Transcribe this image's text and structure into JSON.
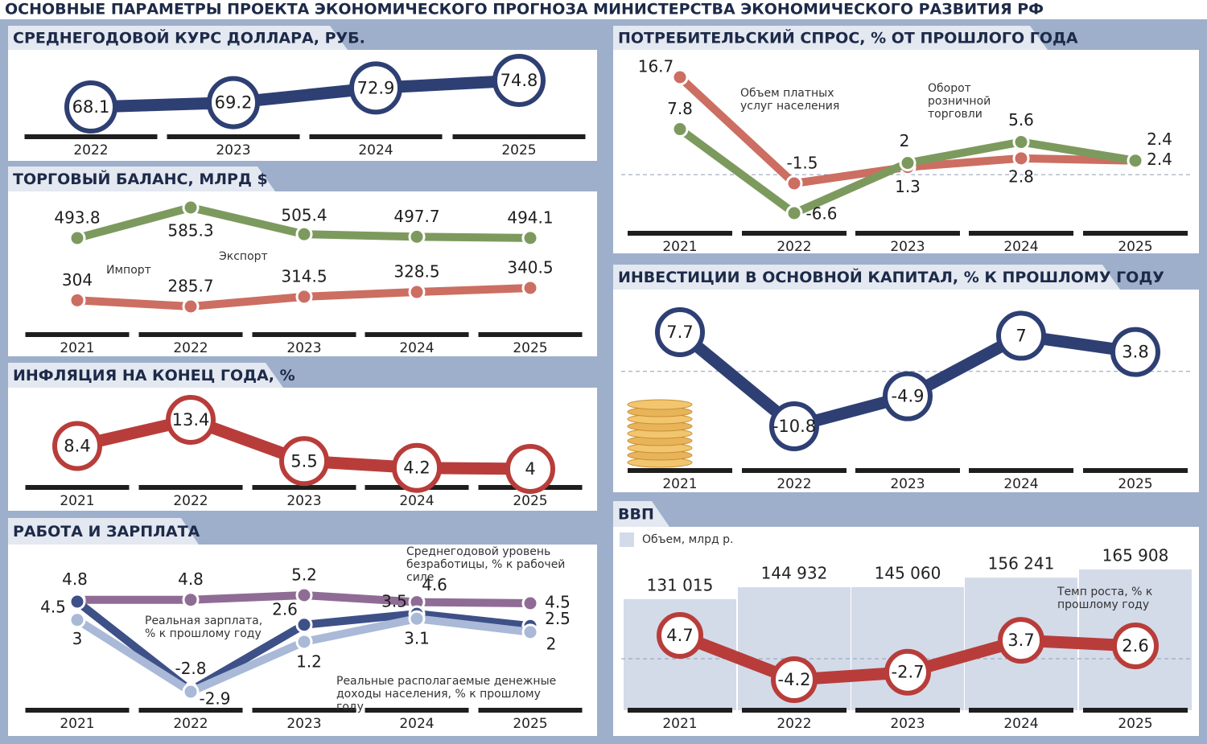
{
  "title": "ОСНОВНЫЕ ПАРАМЕТРЫ ПРОЕКТА ЭКОНОМИЧЕСКОГО ПРОГНОЗА МИНИСТЕРСТВА ЭКОНОМИЧЕСКОГО РАЗВИТИЯ РФ",
  "chart_data": [
    {
      "type": "line",
      "title": "СРЕДНЕГОДОВОЙ КУРС ДОЛЛАРА, РУБ.",
      "markers": "circle",
      "categories": [
        "2022",
        "2023",
        "2024",
        "2025"
      ],
      "values": [
        68.1,
        69.2,
        72.9,
        74.8
      ],
      "color": "#2e3f73"
    },
    {
      "type": "line",
      "title": "ТОРГОВЫЙ БАЛАНС, МЛРД $",
      "markers": "dot",
      "categories": [
        "2021",
        "2022",
        "2023",
        "2024",
        "2025"
      ],
      "series": [
        {
          "name": "Экспорт",
          "color": "#7d9a5e",
          "values": [
            493.8,
            585.3,
            505.4,
            497.7,
            494.1
          ]
        },
        {
          "name": "Импорт",
          "color": "#cc6e62",
          "values": [
            304,
            285.7,
            314.5,
            328.5,
            340.5
          ]
        }
      ]
    },
    {
      "type": "line",
      "title": "ИНФЛЯЦИЯ НА КОНЕЦ ГОДА, %",
      "markers": "circle",
      "categories": [
        "2021",
        "2022",
        "2023",
        "2024",
        "2025"
      ],
      "values": [
        8.4,
        13.4,
        5.5,
        4.2,
        4
      ],
      "color": "#b83d3a"
    },
    {
      "type": "line",
      "title": "РАБОТА И ЗАРПЛАТА",
      "markers": "dot",
      "categories": [
        "2021",
        "2022",
        "2023",
        "2024",
        "2025"
      ],
      "series": [
        {
          "name": "Среднегодовой уровень безработицы, % к рабочей силе",
          "color": "#8f6c95",
          "values": [
            4.8,
            4.8,
            5.2,
            4.6,
            4.5
          ]
        },
        {
          "name": "Реальная зарплата, % к прошлому году",
          "color": "#3d5087",
          "values": [
            4.5,
            -2.8,
            2.6,
            3.5,
            2.5
          ]
        },
        {
          "name": "Реальные располагаемые денежные доходы населения, % к прошлому году",
          "color": "#a9b9d7",
          "values": [
            3,
            -2.9,
            1.2,
            3.1,
            2
          ]
        }
      ]
    },
    {
      "type": "line",
      "title": "ПОТРЕБИТЕЛЬСКИЙ СПРОС, % ОТ ПРОШЛОГО ГОДА",
      "markers": "dot",
      "zero_line": true,
      "categories": [
        "2021",
        "2022",
        "2023",
        "2024",
        "2025"
      ],
      "series": [
        {
          "name": "Объем платных услуг населения",
          "color": "#cc6e62",
          "values": [
            16.7,
            -1.5,
            1.3,
            2.8,
            2.4
          ]
        },
        {
          "name": "Оборот розничной торговли",
          "color": "#7d9a5e",
          "values": [
            7.8,
            -6.6,
            2,
            5.6,
            2.4
          ]
        }
      ]
    },
    {
      "type": "line",
      "title": "ИНВЕСТИЦИИ В ОСНОВНОЙ КАПИТАЛ, % К ПРОШЛОМУ ГОДУ",
      "markers": "circle",
      "zero_line": true,
      "categories": [
        "2021",
        "2022",
        "2023",
        "2024",
        "2025"
      ],
      "values": [
        7.7,
        -10.8,
        -4.9,
        7,
        3.8
      ],
      "color": "#2e3f73"
    },
    {
      "type": "combo",
      "title": "ВВП",
      "zero_line": true,
      "categories": [
        "2021",
        "2022",
        "2023",
        "2024",
        "2025"
      ],
      "series": [
        {
          "name": "Объем, млрд р.",
          "type": "bar",
          "color": "#d3dbe9",
          "values": [
            131015,
            144932,
            145060,
            156241,
            165908
          ],
          "value_labels": [
            "131 015",
            "144 932",
            "145 060",
            "156 241",
            "165 908"
          ]
        },
        {
          "name": "Темп роста, % к прошлому году",
          "type": "line",
          "markers": "circle",
          "color": "#b83d3a",
          "values": [
            4.7,
            -4.2,
            -2.7,
            3.7,
            2.6
          ]
        }
      ]
    }
  ]
}
